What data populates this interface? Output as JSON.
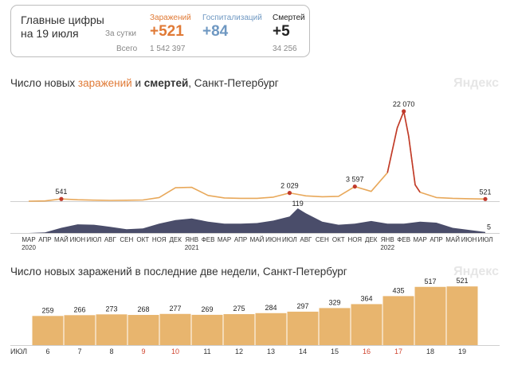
{
  "summary": {
    "title": "Главные цифры на 19 июля",
    "row_day": "За сутки",
    "row_total": "Всего",
    "infected": {
      "label": "Заражений",
      "day": "+521",
      "total": "1 542 397",
      "color": "#e07a36"
    },
    "hospital": {
      "label": "Госпитализаций",
      "day": "+84",
      "total": "",
      "color": "#6f98c2"
    },
    "deaths": {
      "label": "Смертей",
      "day": "+5",
      "total": "34 256",
      "color": "#222222"
    }
  },
  "chart1": {
    "title_prefix": "Число новых ",
    "title_infections": "заражений",
    "title_and": " и ",
    "title_deaths": "смертей",
    "title_suffix": ", Санкт-Петербург",
    "watermark": "Яндекс"
  },
  "chart2": {
    "title": "Число новых заражений в последние две недели, Санкт-Петербург",
    "watermark": "Яндекс"
  },
  "chart_data": [
    {
      "type": "area",
      "series": [
        {
          "name": "заражений",
          "color": "#e8a85a"
        },
        {
          "name": "смертей",
          "color": "#4a4d6a"
        }
      ],
      "x_ticks": [
        "МАР",
        "АПР",
        "МАЙ",
        "ИЮН",
        "ИЮЛ",
        "АВГ",
        "СЕН",
        "ОКТ",
        "НОЯ",
        "ДЕК",
        "ЯНВ",
        "ФЕВ",
        "МАР",
        "АПР",
        "МАЙ",
        "ИЮН",
        "ИЮЛ",
        "АВГ",
        "СЕН",
        "ОКТ",
        "НОЯ",
        "ДЕК",
        "ЯНВ",
        "ФЕВ",
        "МАР",
        "АПР",
        "МАЙ",
        "ИЮН",
        "ИЮЛ"
      ],
      "year_labels": [
        {
          "at": 0,
          "label": "2020"
        },
        {
          "at": 10,
          "label": "2021"
        },
        {
          "at": 22,
          "label": "2022"
        }
      ],
      "infections": [
        [
          0,
          0
        ],
        [
          1,
          60
        ],
        [
          2,
          541
        ],
        [
          3,
          350
        ],
        [
          4,
          250
        ],
        [
          5,
          200
        ],
        [
          6,
          230
        ],
        [
          7,
          300
        ],
        [
          8,
          900
        ],
        [
          9,
          3300
        ],
        [
          10,
          3400
        ],
        [
          11,
          1400
        ],
        [
          12,
          800
        ],
        [
          13,
          700
        ],
        [
          14,
          700
        ],
        [
          15,
          1000
        ],
        [
          16,
          2029
        ],
        [
          17,
          1300
        ],
        [
          18,
          1100
        ],
        [
          19,
          1200
        ],
        [
          20,
          3597
        ],
        [
          21,
          2400
        ],
        [
          22,
          7000
        ],
        [
          22.6,
          18000
        ],
        [
          23,
          22070
        ],
        [
          23.3,
          16000
        ],
        [
          23.7,
          4000
        ],
        [
          24,
          2200
        ],
        [
          25,
          900
        ],
        [
          26,
          700
        ],
        [
          27,
          600
        ],
        [
          28,
          521
        ]
      ],
      "infection_annotations": [
        {
          "x": 2,
          "value": "541"
        },
        {
          "x": 16,
          "value": "2 029"
        },
        {
          "x": 20,
          "value": "3 597"
        },
        {
          "x": 23,
          "value": "22 070"
        },
        {
          "x": 28,
          "value": "521"
        }
      ],
      "deaths": [
        [
          0,
          0
        ],
        [
          1,
          3
        ],
        [
          2,
          25
        ],
        [
          3,
          42
        ],
        [
          4,
          40
        ],
        [
          5,
          30
        ],
        [
          6,
          18
        ],
        [
          7,
          22
        ],
        [
          8,
          45
        ],
        [
          9,
          62
        ],
        [
          10,
          70
        ],
        [
          11,
          55
        ],
        [
          12,
          45
        ],
        [
          13,
          45
        ],
        [
          14,
          48
        ],
        [
          15,
          60
        ],
        [
          16,
          80
        ],
        [
          16.5,
          119
        ],
        [
          17,
          95
        ],
        [
          18,
          55
        ],
        [
          19,
          40
        ],
        [
          20,
          45
        ],
        [
          21,
          58
        ],
        [
          22,
          45
        ],
        [
          23,
          45
        ],
        [
          24,
          55
        ],
        [
          25,
          50
        ],
        [
          26,
          25
        ],
        [
          27,
          15
        ],
        [
          28,
          5
        ]
      ],
      "death_annotations": [
        {
          "x": 16.5,
          "value": "119"
        },
        {
          "x": 28,
          "value": "5"
        }
      ]
    },
    {
      "type": "bar",
      "month_label": "ИЮЛ",
      "categories": [
        "6",
        "7",
        "8",
        "9",
        "10",
        "11",
        "12",
        "13",
        "14",
        "15",
        "16",
        "17",
        "18",
        "19"
      ],
      "weekend_days": [
        "9",
        "10",
        "16",
        "17"
      ],
      "values": [
        259,
        266,
        273,
        268,
        277,
        269,
        275,
        284,
        297,
        329,
        364,
        435,
        517,
        521
      ],
      "color": "#e8b56e",
      "ylim": [
        0,
        600
      ]
    }
  ]
}
